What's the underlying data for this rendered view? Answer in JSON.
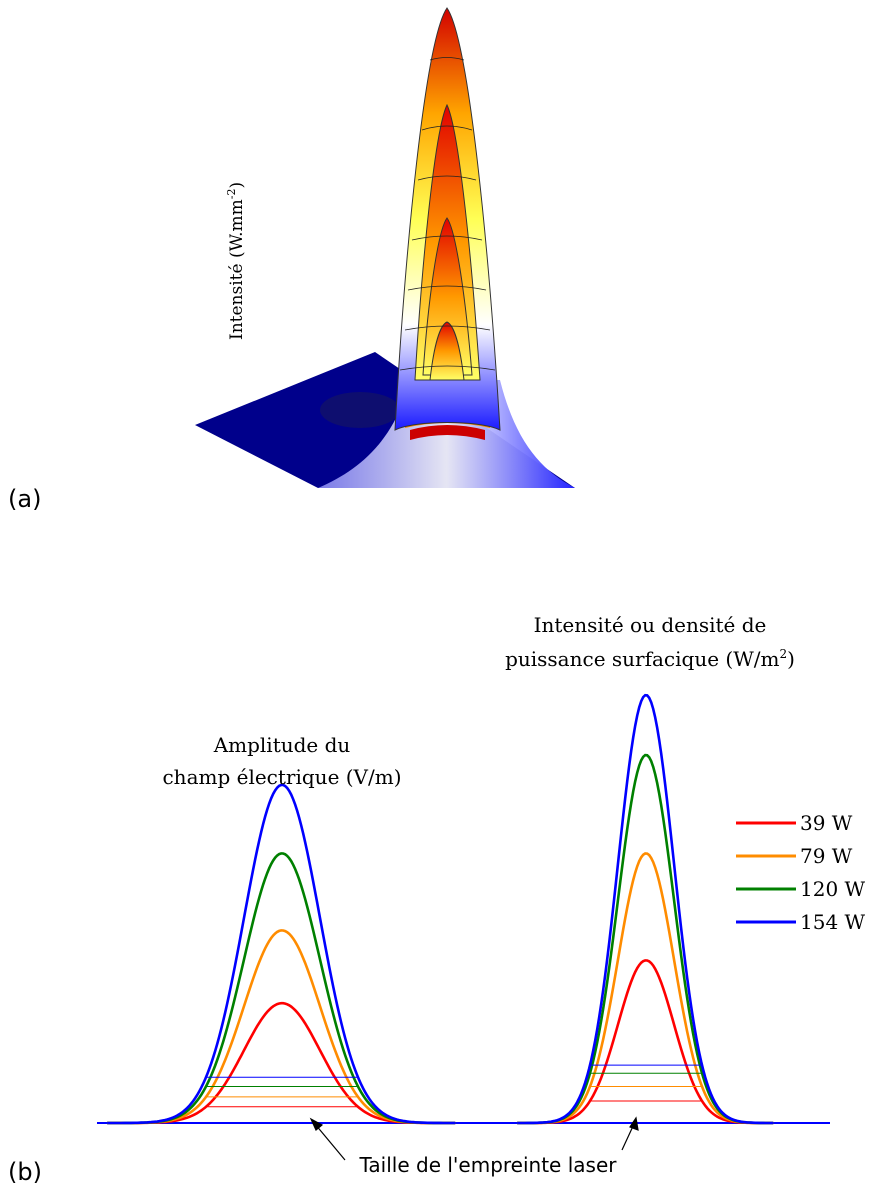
{
  "panel_a": {
    "tag": "(a)",
    "ylabel": "Intensité (W.mm",
    "ylabel_exp": "-2",
    "ylabel_close": ")"
  },
  "panel_b": {
    "tag": "(b)",
    "annotation": "Taille de l'empreinte laser"
  },
  "chart_data": [
    {
      "type": "surface",
      "panel": "(a)",
      "ylabel": "Intensité (W.mm-2)",
      "series": [
        {
          "name": "39 W",
          "relative_peak": 0.25
        },
        {
          "name": "79 W",
          "relative_peak": 0.51
        },
        {
          "name": "120 W",
          "relative_peak": 0.78
        },
        {
          "name": "154 W",
          "relative_peak": 1.0
        }
      ],
      "colormap": [
        "#00008b",
        "#ffffff",
        "#ffff66",
        "#ff8c00",
        "#cc0000"
      ]
    },
    {
      "type": "line",
      "panel": "(b)",
      "groups": [
        {
          "title_line1": "Amplitude du",
          "title_line2": "champ électrique (V/m)",
          "peak_relative": [
            0.28,
            0.45,
            0.63,
            0.79
          ]
        },
        {
          "title_line1": "Intensité ou densité de",
          "title_line2": "puissance surfacique (W/m",
          "title_exp": "2",
          "title_close": ")",
          "peak_relative": [
            0.38,
            0.63,
            0.86,
            1.0
          ]
        }
      ],
      "series": [
        {
          "name": "39 W",
          "color": "#ff0000"
        },
        {
          "name": "79 W",
          "color": "#ff8c00"
        },
        {
          "name": "120 W",
          "color": "#008000"
        },
        {
          "name": "154 W",
          "color": "#0000ff"
        }
      ],
      "annotation": "Taille de l'empreinte laser"
    }
  ]
}
